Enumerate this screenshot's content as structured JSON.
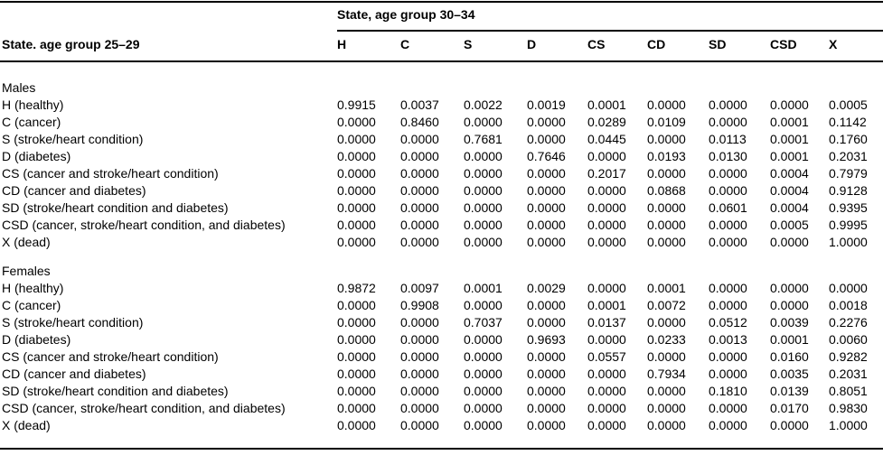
{
  "table": {
    "col_group_header": "State, age group 30–34",
    "row_group_header": "State. age group 25–29",
    "columns": [
      "H",
      "C",
      "S",
      "D",
      "CS",
      "CD",
      "SD",
      "CSD",
      "X"
    ],
    "sections": [
      {
        "label": "Males",
        "rows": [
          {
            "label": "H (healthy)",
            "values": [
              "0.9915",
              "0.0037",
              "0.0022",
              "0.0019",
              "0.0001",
              "0.0000",
              "0.0000",
              "0.0000",
              "0.0005"
            ]
          },
          {
            "label": "C (cancer)",
            "values": [
              "0.0000",
              "0.8460",
              "0.0000",
              "0.0000",
              "0.0289",
              "0.0109",
              "0.0000",
              "0.0001",
              "0.1142"
            ]
          },
          {
            "label": "S (stroke/heart condition)",
            "values": [
              "0.0000",
              "0.0000",
              "0.7681",
              "0.0000",
              "0.0445",
              "0.0000",
              "0.0113",
              "0.0001",
              "0.1760"
            ]
          },
          {
            "label": "D (diabetes)",
            "values": [
              "0.0000",
              "0.0000",
              "0.0000",
              "0.7646",
              "0.0000",
              "0.0193",
              "0.0130",
              "0.0001",
              "0.2031"
            ]
          },
          {
            "label": "CS (cancer and stroke/heart condition)",
            "values": [
              "0.0000",
              "0.0000",
              "0.0000",
              "0.0000",
              "0.2017",
              "0.0000",
              "0.0000",
              "0.0004",
              "0.7979"
            ]
          },
          {
            "label": "CD (cancer and diabetes)",
            "values": [
              "0.0000",
              "0.0000",
              "0.0000",
              "0.0000",
              "0.0000",
              "0.0868",
              "0.0000",
              "0.0004",
              "0.9128"
            ]
          },
          {
            "label": "SD (stroke/heart condition and diabetes)",
            "values": [
              "0.0000",
              "0.0000",
              "0.0000",
              "0.0000",
              "0.0000",
              "0.0000",
              "0.0601",
              "0.0004",
              "0.9395"
            ]
          },
          {
            "label": "CSD (cancer, stroke/heart condition, and diabetes)",
            "values": [
              "0.0000",
              "0.0000",
              "0.0000",
              "0.0000",
              "0.0000",
              "0.0000",
              "0.0000",
              "0.0005",
              "0.9995"
            ]
          },
          {
            "label": "X (dead)",
            "values": [
              "0.0000",
              "0.0000",
              "0.0000",
              "0.0000",
              "0.0000",
              "0.0000",
              "0.0000",
              "0.0000",
              "1.0000"
            ]
          }
        ]
      },
      {
        "label": "Females",
        "rows": [
          {
            "label": "H (healthy)",
            "values": [
              "0.9872",
              "0.0097",
              "0.0001",
              "0.0029",
              "0.0000",
              "0.0001",
              "0.0000",
              "0.0000",
              "0.0000"
            ]
          },
          {
            "label": "C (cancer)",
            "values": [
              "0.0000",
              "0.9908",
              "0.0000",
              "0.0000",
              "0.0001",
              "0.0072",
              "0.0000",
              "0.0000",
              "0.0018"
            ]
          },
          {
            "label": "S (stroke/heart condition)",
            "values": [
              "0.0000",
              "0.0000",
              "0.7037",
              "0.0000",
              "0.0137",
              "0.0000",
              "0.0512",
              "0.0039",
              "0.2276"
            ]
          },
          {
            "label": "D (diabetes)",
            "values": [
              "0.0000",
              "0.0000",
              "0.0000",
              "0.9693",
              "0.0000",
              "0.0233",
              "0.0013",
              "0.0001",
              "0.0060"
            ]
          },
          {
            "label": "CS (cancer and stroke/heart condition)",
            "values": [
              "0.0000",
              "0.0000",
              "0.0000",
              "0.0000",
              "0.0557",
              "0.0000",
              "0.0000",
              "0.0160",
              "0.9282"
            ]
          },
          {
            "label": "CD (cancer and diabetes)",
            "values": [
              "0.0000",
              "0.0000",
              "0.0000",
              "0.0000",
              "0.0000",
              "0.7934",
              "0.0000",
              "0.0035",
              "0.2031"
            ]
          },
          {
            "label": "SD (stroke/heart condition and diabetes)",
            "values": [
              "0.0000",
              "0.0000",
              "0.0000",
              "0.0000",
              "0.0000",
              "0.0000",
              "0.1810",
              "0.0139",
              "0.8051"
            ]
          },
          {
            "label": "CSD (cancer, stroke/heart condition, and diabetes)",
            "values": [
              "0.0000",
              "0.0000",
              "0.0000",
              "0.0000",
              "0.0000",
              "0.0000",
              "0.0000",
              "0.0170",
              "0.9830"
            ]
          },
          {
            "label": "X (dead)",
            "values": [
              "0.0000",
              "0.0000",
              "0.0000",
              "0.0000",
              "0.0000",
              "0.0000",
              "0.0000",
              "0.0000",
              "1.0000"
            ]
          }
        ]
      }
    ]
  },
  "colors": {
    "text": "#000000",
    "background": "#ffffff",
    "rule": "#000000"
  }
}
